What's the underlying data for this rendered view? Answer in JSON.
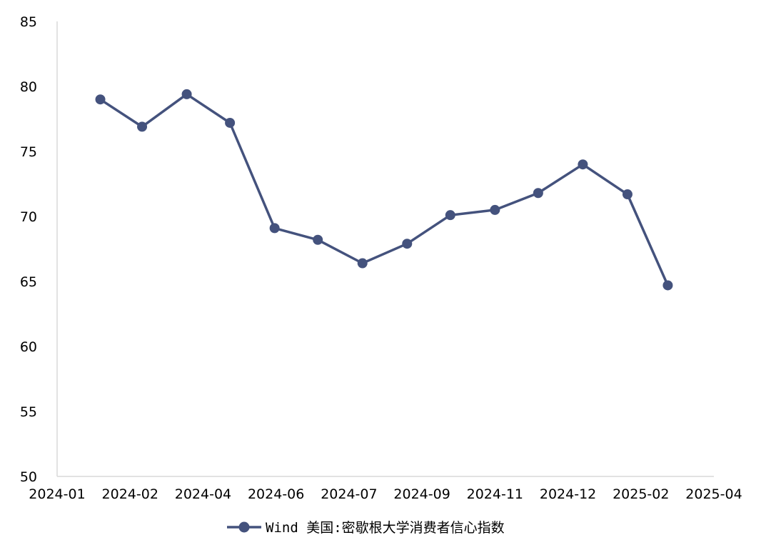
{
  "chart_data": {
    "type": "line",
    "title": "",
    "xlabel": "",
    "ylabel": "",
    "x_ticks": [
      "2024-01",
      "2024-02",
      "2024-04",
      "2024-06",
      "2024-07",
      "2024-09",
      "2024-11",
      "2024-12",
      "2025-02",
      "2025-04"
    ],
    "y_ticks": [
      "50",
      "55",
      "60",
      "65",
      "70",
      "75",
      "80",
      "85"
    ],
    "ylim": [
      50,
      85
    ],
    "xlim": [
      "2024-01-01",
      "2025-04-01"
    ],
    "grid": false,
    "legend_position": "bottom-center",
    "color": "#44527d",
    "series": [
      {
        "name": "Wind 美国:密歇根大学消费者信心指数",
        "points": [
          {
            "x": "2024-01-31",
            "y": 79.0
          },
          {
            "x": "2024-02-29",
            "y": 76.9
          },
          {
            "x": "2024-03-31",
            "y": 79.4
          },
          {
            "x": "2024-04-30",
            "y": 77.2
          },
          {
            "x": "2024-05-31",
            "y": 69.1
          },
          {
            "x": "2024-06-30",
            "y": 68.2
          },
          {
            "x": "2024-07-31",
            "y": 66.4
          },
          {
            "x": "2024-08-31",
            "y": 67.9
          },
          {
            "x": "2024-09-30",
            "y": 70.1
          },
          {
            "x": "2024-10-31",
            "y": 70.5
          },
          {
            "x": "2024-11-30",
            "y": 71.8
          },
          {
            "x": "2024-12-31",
            "y": 74.0
          },
          {
            "x": "2025-01-31",
            "y": 71.7
          },
          {
            "x": "2025-02-28",
            "y": 64.7
          }
        ]
      }
    ]
  }
}
